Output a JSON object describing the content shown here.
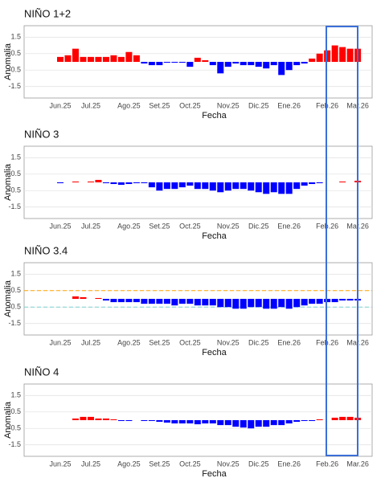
{
  "chart_data": [
    {
      "type": "bar",
      "title": "NIÑO 1+2",
      "xlabel": "Fecha",
      "ylabel": "Anomalia",
      "categories": [
        "Jun.25",
        null,
        null,
        null,
        "Jul.25",
        null,
        null,
        null,
        null,
        "Ago.25",
        null,
        null,
        null,
        "Set.25",
        null,
        null,
        null,
        "Oct.25",
        null,
        null,
        null,
        null,
        "Nov.25",
        null,
        null,
        null,
        "Dic.25",
        null,
        null,
        null,
        "Ene.26",
        null,
        null,
        null,
        null,
        "Feb.26",
        null,
        null,
        null,
        "Mar.26"
      ],
      "values": [
        0.3,
        0.4,
        0.8,
        0.3,
        0.3,
        0.3,
        0.3,
        0.4,
        0.3,
        0.6,
        0.4,
        -0.1,
        -0.2,
        -0.2,
        -0.05,
        -0.05,
        -0.05,
        -0.3,
        0.25,
        0.1,
        -0.2,
        -0.7,
        -0.3,
        -0.1,
        -0.2,
        -0.2,
        -0.3,
        -0.4,
        -0.2,
        -0.8,
        -0.5,
        -0.2,
        -0.1,
        0.2,
        0.5,
        0.7,
        1.0,
        0.9,
        0.8,
        0.8
      ],
      "positive_color": "#ff0000",
      "negative_color": "#0000ff",
      "ylim": [
        -2.2,
        2.2
      ],
      "yticks": [
        1.5,
        0.5,
        -0.5,
        -1.5
      ],
      "grid": true
    },
    {
      "type": "bar",
      "title": "NIÑO 3",
      "xlabel": "Fecha",
      "ylabel": "Anomalia",
      "categories": [
        "Jun.25",
        null,
        null,
        null,
        "Jul.25",
        null,
        null,
        null,
        null,
        "Ago.25",
        null,
        null,
        null,
        "Set.25",
        null,
        null,
        null,
        "Oct.25",
        null,
        null,
        null,
        null,
        "Nov.25",
        null,
        null,
        null,
        "Dic.25",
        null,
        null,
        null,
        "Ene.26",
        null,
        null,
        null,
        null,
        "Feb.26",
        null,
        null,
        null,
        "Mar.26"
      ],
      "values": [
        -0.05,
        0,
        0.05,
        0,
        0.05,
        0.15,
        -0.05,
        -0.1,
        -0.15,
        -0.1,
        -0.05,
        -0.05,
        -0.3,
        -0.5,
        -0.4,
        -0.4,
        -0.3,
        -0.2,
        -0.4,
        -0.4,
        -0.5,
        -0.6,
        -0.5,
        -0.4,
        -0.4,
        -0.5,
        -0.6,
        -0.7,
        -0.6,
        -0.7,
        -0.7,
        -0.4,
        -0.2,
        -0.1,
        -0.05,
        0,
        0,
        0.05,
        0,
        0.1
      ],
      "positive_color": "#ff0000",
      "negative_color": "#0000ff",
      "ylim": [
        -2.2,
        2.2
      ],
      "yticks": [
        1.5,
        0.5,
        -0.5,
        -1.5
      ],
      "grid": true
    },
    {
      "type": "bar",
      "title": "NIÑO 3.4",
      "xlabel": "Fecha",
      "ylabel": "Anomalia",
      "categories": [
        "Jun.25",
        null,
        null,
        null,
        "Jul.25",
        null,
        null,
        null,
        null,
        "Ago.25",
        null,
        null,
        null,
        "Set.25",
        null,
        null,
        null,
        "Oct.25",
        null,
        null,
        null,
        null,
        "Nov.25",
        null,
        null,
        null,
        "Dic.25",
        null,
        null,
        null,
        "Ene.26",
        null,
        null,
        null,
        null,
        "Feb.26",
        null,
        null,
        null,
        "Mar.26"
      ],
      "values": [
        0,
        0,
        0.15,
        0.1,
        0,
        0.05,
        -0.1,
        -0.2,
        -0.2,
        -0.2,
        -0.2,
        -0.3,
        -0.3,
        -0.3,
        -0.3,
        -0.4,
        -0.3,
        -0.3,
        -0.4,
        -0.4,
        -0.4,
        -0.5,
        -0.5,
        -0.6,
        -0.6,
        -0.5,
        -0.5,
        -0.6,
        -0.6,
        -0.5,
        -0.6,
        -0.5,
        -0.4,
        -0.3,
        -0.3,
        -0.2,
        -0.2,
        -0.1,
        -0.1,
        -0.1
      ],
      "positive_color": "#ff0000",
      "negative_color": "#0000ff",
      "hlines": [
        {
          "value": 0.5,
          "color": "#ffa500"
        },
        {
          "value": -0.5,
          "color": "#7fcfd0"
        }
      ],
      "ylim": [
        -2.2,
        2.2
      ],
      "yticks": [
        1.5,
        0.5,
        -0.5,
        -1.5
      ],
      "grid": true
    },
    {
      "type": "bar",
      "title": "NIÑO 4",
      "xlabel": "Fecha",
      "ylabel": "Anomalia",
      "categories": [
        "Jun.25",
        null,
        null,
        null,
        "Jul.25",
        null,
        null,
        null,
        null,
        "Ago.25",
        null,
        null,
        null,
        "Set.25",
        null,
        null,
        null,
        "Oct.25",
        null,
        null,
        null,
        null,
        "Nov.25",
        null,
        null,
        null,
        "Dic.25",
        null,
        null,
        null,
        "Ene.26",
        null,
        null,
        null,
        null,
        "Feb.26",
        null,
        null,
        null,
        "Mar.26"
      ],
      "values": [
        0,
        0,
        0.1,
        0.2,
        0.2,
        0.1,
        0.1,
        0.05,
        -0.05,
        -0.05,
        0,
        -0.05,
        -0.05,
        -0.1,
        -0.15,
        -0.2,
        -0.2,
        -0.2,
        -0.25,
        -0.2,
        -0.2,
        -0.3,
        -0.3,
        -0.4,
        -0.45,
        -0.5,
        -0.4,
        -0.4,
        -0.3,
        -0.3,
        -0.2,
        -0.1,
        -0.05,
        -0.05,
        0.05,
        0,
        0.15,
        0.2,
        0.2,
        0.15
      ],
      "positive_color": "#ff0000",
      "negative_color": "#0000ff",
      "ylim": [
        -2.2,
        2.2
      ],
      "yticks": [
        1.5,
        0.5,
        -0.5,
        -1.5
      ],
      "grid": true
    }
  ]
}
